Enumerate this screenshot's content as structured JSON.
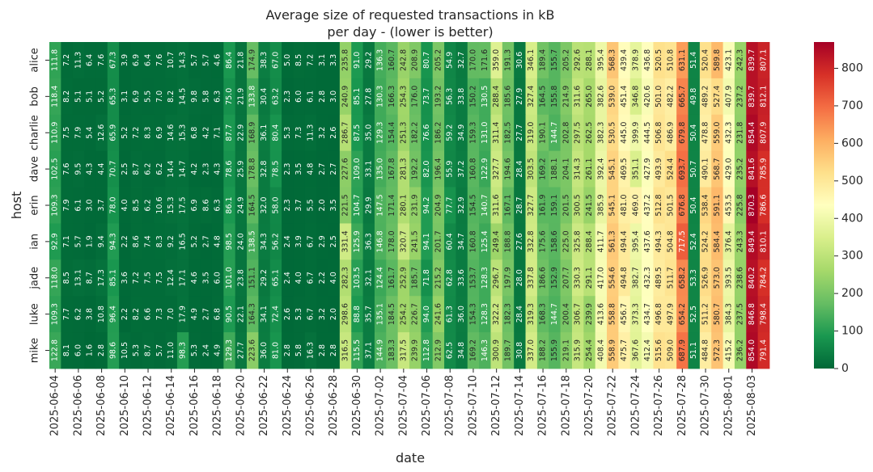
{
  "chart_data": {
    "type": "heatmap",
    "title": "Average size of requested transactions in kB\nper day - (lower is better)",
    "xlabel": "date",
    "ylabel": "host",
    "colormap": "RdYlGn_r",
    "colormap_colors": [
      "#006837",
      "#1a9850",
      "#66bd63",
      "#a6d96a",
      "#d9ef8b",
      "#ffffbf",
      "#fee08b",
      "#fdae61",
      "#f46d43",
      "#d73027",
      "#a50026"
    ],
    "vmin": 0,
    "vmax": 870,
    "colorbar_ticks": [
      0,
      100,
      200,
      300,
      400,
      500,
      600,
      700,
      800
    ],
    "rows": [
      "alice",
      "bob",
      "charlie",
      "dave",
      "erin",
      "ian",
      "jade",
      "luke",
      "mike"
    ],
    "columns": [
      "2025-06-04",
      "2025-06-05",
      "2025-06-06",
      "2025-06-07",
      "2025-06-08",
      "2025-06-09",
      "2025-06-10",
      "2025-06-11",
      "2025-06-12",
      "2025-06-13",
      "2025-06-14",
      "2025-06-15",
      "2025-06-16",
      "2025-06-17",
      "2025-06-18",
      "2025-06-19",
      "2025-06-20",
      "2025-06-21",
      "2025-06-22",
      "2025-06-23",
      "2025-06-24",
      "2025-06-25",
      "2025-06-26",
      "2025-06-27",
      "2025-06-28",
      "2025-06-29",
      "2025-06-30",
      "2025-07-01",
      "2025-07-02",
      "2025-07-03",
      "2025-07-04",
      "2025-07-05",
      "2025-07-06",
      "2025-07-07",
      "2025-07-08",
      "2025-07-09",
      "2025-07-10",
      "2025-07-11",
      "2025-07-12",
      "2025-07-13",
      "2025-07-14",
      "2025-07-15",
      "2025-07-16",
      "2025-07-17",
      "2025-07-18",
      "2025-07-19",
      "2025-07-20",
      "2025-07-21",
      "2025-07-22",
      "2025-07-23",
      "2025-07-24",
      "2025-07-25",
      "2025-07-26",
      "2025-07-27",
      "2025-07-28",
      "2025-07-29",
      "2025-07-30",
      "2025-07-31",
      "2025-08-01",
      "2025-08-02",
      "2025-08-03",
      "2025-08-04"
    ],
    "xtick_labels": [
      "2025-06-04",
      "2025-06-06",
      "2025-06-08",
      "2025-06-10",
      "2025-06-12",
      "2025-06-14",
      "2025-06-16",
      "2025-06-18",
      "2025-06-20",
      "2025-06-22",
      "2025-06-24",
      "2025-06-26",
      "2025-06-28",
      "2025-06-30",
      "2025-07-02",
      "2025-07-04",
      "2025-07-06",
      "2025-07-08",
      "2025-07-10",
      "2025-07-12",
      "2025-07-14",
      "2025-07-16",
      "2025-07-18",
      "2025-07-20",
      "2025-07-22",
      "2025-07-24",
      "2025-07-26",
      "2025-07-28",
      "2025-07-30",
      "2025-08-01",
      "2025-08-03"
    ],
    "values": [
      [
        111.8,
        7.2,
        11.3,
        6.4,
        7.6,
        67.3,
        3.9,
        6.9,
        6.4,
        7.6,
        10.7,
        14.3,
        5.7,
        5.7,
        4.6,
        86.4,
        21.8,
        174.9,
        38.3,
        67.0,
        5.0,
        8.5,
        7.2,
        3.1,
        3.3,
        235.8,
        91.0,
        29.2,
        136.3,
        160.7,
        242.8,
        208.9,
        80.7,
        205.2,
        54.9,
        32.7,
        170.0,
        171.6,
        359.0,
        191.3,
        30.6,
        346.1,
        189.4,
        155.7,
        205.2,
        292.6,
        288.1,
        395.4,
        568.3,
        439.4,
        378.9,
        436.8,
        520.5,
        510.8,
        631.1,
        51.4,
        520.4,
        589.8,
        423.1,
        242.3,
        839.7,
        807.1
      ],
      [
        118.4,
        8.2,
        5.1,
        5.1,
        5.2,
        65.3,
        3.1,
        6.9,
        5.5,
        7.0,
        8.2,
        14.5,
        9.8,
        5.8,
        6.3,
        75.0,
        21.9,
        133.8,
        30.4,
        63.2,
        2.3,
        6.0,
        6.1,
        2.8,
        3.0,
        240.9,
        85.1,
        27.8,
        130.3,
        166.3,
        254.3,
        176.0,
        73.7,
        193.2,
        56.3,
        33.8,
        150.2,
        130.5,
        288.4,
        185.6,
        27.9,
        327.4,
        164.5,
        155.8,
        214.9,
        311.6,
        265.0,
        382.6,
        539.0,
        451.4,
        346.8,
        420.6,
        501.0,
        482.2,
        665.7,
        49.8,
        489.2,
        527.4,
        407.9,
        237.2,
        839.7,
        812.1
      ],
      [
        110.9,
        7.5,
        7.9,
        5.4,
        12.6,
        65.9,
        5.2,
        7.2,
        8.3,
        6.9,
        14.6,
        15.3,
        6.8,
        4.2,
        7.1,
        87.7,
        22.9,
        168.9,
        36.1,
        80.4,
        5.3,
        7.3,
        11.3,
        3.2,
        2.6,
        286.7,
        87.5,
        35.0,
        129.3,
        154.4,
        251.3,
        182.2,
        76.6,
        186.2,
        59.2,
        34.9,
        159.3,
        131.0,
        311.4,
        182.5,
        27.7,
        319.0,
        190.1,
        144.7,
        202.8,
        297.5,
        262.5,
        382.3,
        530.5,
        445.0,
        399.9,
        444.5,
        506.8,
        486.9,
        679.8,
        50.4,
        478.8,
        559.0,
        432.3,
        231.8,
        854.4,
        807.9
      ],
      [
        102.5,
        7.6,
        9.5,
        4.3,
        4.4,
        70.7,
        2.5,
        8.7,
        6.2,
        6.2,
        14.4,
        14.7,
        4.2,
        2.3,
        4.3,
        78.6,
        25.9,
        178.8,
        32.8,
        78.5,
        2.3,
        3.5,
        4.8,
        2.7,
        2.7,
        227.6,
        109.0,
        33.1,
        135.0,
        167.8,
        281.3,
        192.2,
        82.0,
        196.4,
        55.9,
        37.2,
        160.8,
        122.9,
        327.7,
        194.6,
        28.4,
        303.5,
        169.2,
        188.1,
        204.1,
        314.3,
        261.1,
        392.4,
        545.1,
        469.5,
        351.1,
        427.9,
        493.9,
        524.4,
        693.7,
        50.7,
        490.1,
        568.7,
        429.0,
        235.2,
        841.6,
        785.9
      ],
      [
        109.3,
        7.9,
        6.1,
        3.0,
        3.7,
        78.0,
        4.0,
        8.5,
        6.2,
        10.6,
        15.3,
        17.5,
        6.9,
        8.6,
        6.3,
        86.1,
        24.9,
        164.5,
        32.0,
        58.0,
        2.3,
        3.7,
        5.5,
        2.0,
        3.5,
        221.5,
        104.7,
        29.9,
        147.5,
        171.4,
        280.1,
        231.9,
        94.2,
        204.9,
        77.7,
        32.9,
        154.5,
        140.7,
        311.6,
        167.1,
        28.7,
        327.7,
        161.9,
        159.1,
        201.5,
        300.5,
        241.5,
        385.9,
        545.1,
        481.0,
        469.0,
        437.2,
        512.8,
        501.5,
        676.8,
        50.4,
        538.4,
        591.1,
        453.5,
        225.8,
        870.3,
        786.6
      ],
      [
        92.9,
        7.1,
        5.7,
        1.9,
        9.4,
        94.3,
        2.2,
        8.6,
        7.4,
        8.3,
        9.2,
        16.5,
        5.2,
        2.7,
        4.8,
        98.5,
        24.0,
        138.5,
        34.3,
        56.2,
        2.4,
        3.9,
        6.7,
        2.9,
        2.5,
        331.4,
        125.9,
        36.3,
        146.8,
        178.0,
        320.7,
        241.5,
        94.1,
        201.7,
        60.4,
        34.7,
        160.8,
        125.4,
        249.4,
        188.8,
        27.6,
        332.8,
        175.6,
        158.6,
        225.0,
        325.8,
        288.4,
        411.7,
        561.3,
        494.4,
        395.4,
        437.6,
        494.3,
        504.8,
        717.5,
        52.4,
        524.2,
        584.4,
        376.4,
        243.3,
        849.4,
        810.1
      ],
      [
        118.0,
        8.5,
        13.1,
        8.7,
        17.3,
        85.1,
        3.6,
        7.2,
        7.5,
        7.5,
        12.4,
        17.1,
        4.6,
        3.5,
        6.0,
        101.0,
        23.8,
        151.1,
        29.2,
        65.1,
        2.4,
        4.0,
        6.7,
        2.2,
        4.0,
        282.3,
        103.5,
        32.1,
        124.4,
        161.7,
        252.9,
        185.7,
        71.8,
        215.2,
        62.8,
        33.6,
        153.7,
        128.3,
        296.7,
        197.9,
        28.0,
        337.8,
        186.6,
        152.9,
        207.7,
        330.3,
        291.1,
        417.0,
        554.6,
        494.8,
        382.7,
        432.3,
        489.5,
        511.7,
        658.2,
        53.3,
        526.9,
        573.0,
        393.5,
        238.6,
        840.2,
        784.2
      ],
      [
        109.3,
        7.7,
        6.2,
        3.8,
        10.8,
        96.4,
        2.2,
        8.2,
        6.6,
        7.3,
        7.0,
        17.9,
        4.9,
        2.7,
        6.8,
        90.5,
        22.1,
        164.3,
        34.1,
        72.4,
        2.6,
        5.3,
        6.7,
        3.2,
        2.0,
        298.6,
        88.8,
        35.7,
        135.1,
        184.5,
        254.2,
        226.7,
        94.0,
        241.6,
        61.3,
        36.0,
        154.3,
        128.3,
        322.2,
        182.3,
        28.4,
        319.3,
        168.3,
        144.7,
        200.4,
        306.7,
        239.9,
        413.6,
        558.8,
        456.7,
        373.3,
        434.7,
        496.8,
        497.9,
        654.2,
        52.5,
        511.2,
        580.7,
        384.3,
        237.5,
        846.8,
        798.4
      ],
      [
        122.8,
        8.1,
        6.0,
        1.6,
        2.8,
        98.6,
        10.5,
        5.3,
        8.7,
        5.7,
        11.0,
        98.3,
        5.3,
        2.4,
        4.9,
        129.3,
        27.7,
        223.6,
        36.0,
        81.0,
        2.8,
        5.8,
        16.3,
        2.8,
        2.8,
        316.5,
        115.5,
        37.1,
        144.9,
        183.3,
        317.5,
        239.9,
        112.8,
        212.9,
        62.5,
        34.8,
        169.2,
        146.3,
        300.9,
        189.7,
        30.8,
        337.0,
        188.2,
        155.9,
        219.1,
        315.9,
        254.4,
        408.4,
        558.9,
        475.7,
        367.6,
        412.4,
        515.6,
        509.0,
        687.9,
        51.1,
        484.8,
        572.3,
        415.2,
        236.2,
        854.0,
        791.4
      ]
    ]
  }
}
